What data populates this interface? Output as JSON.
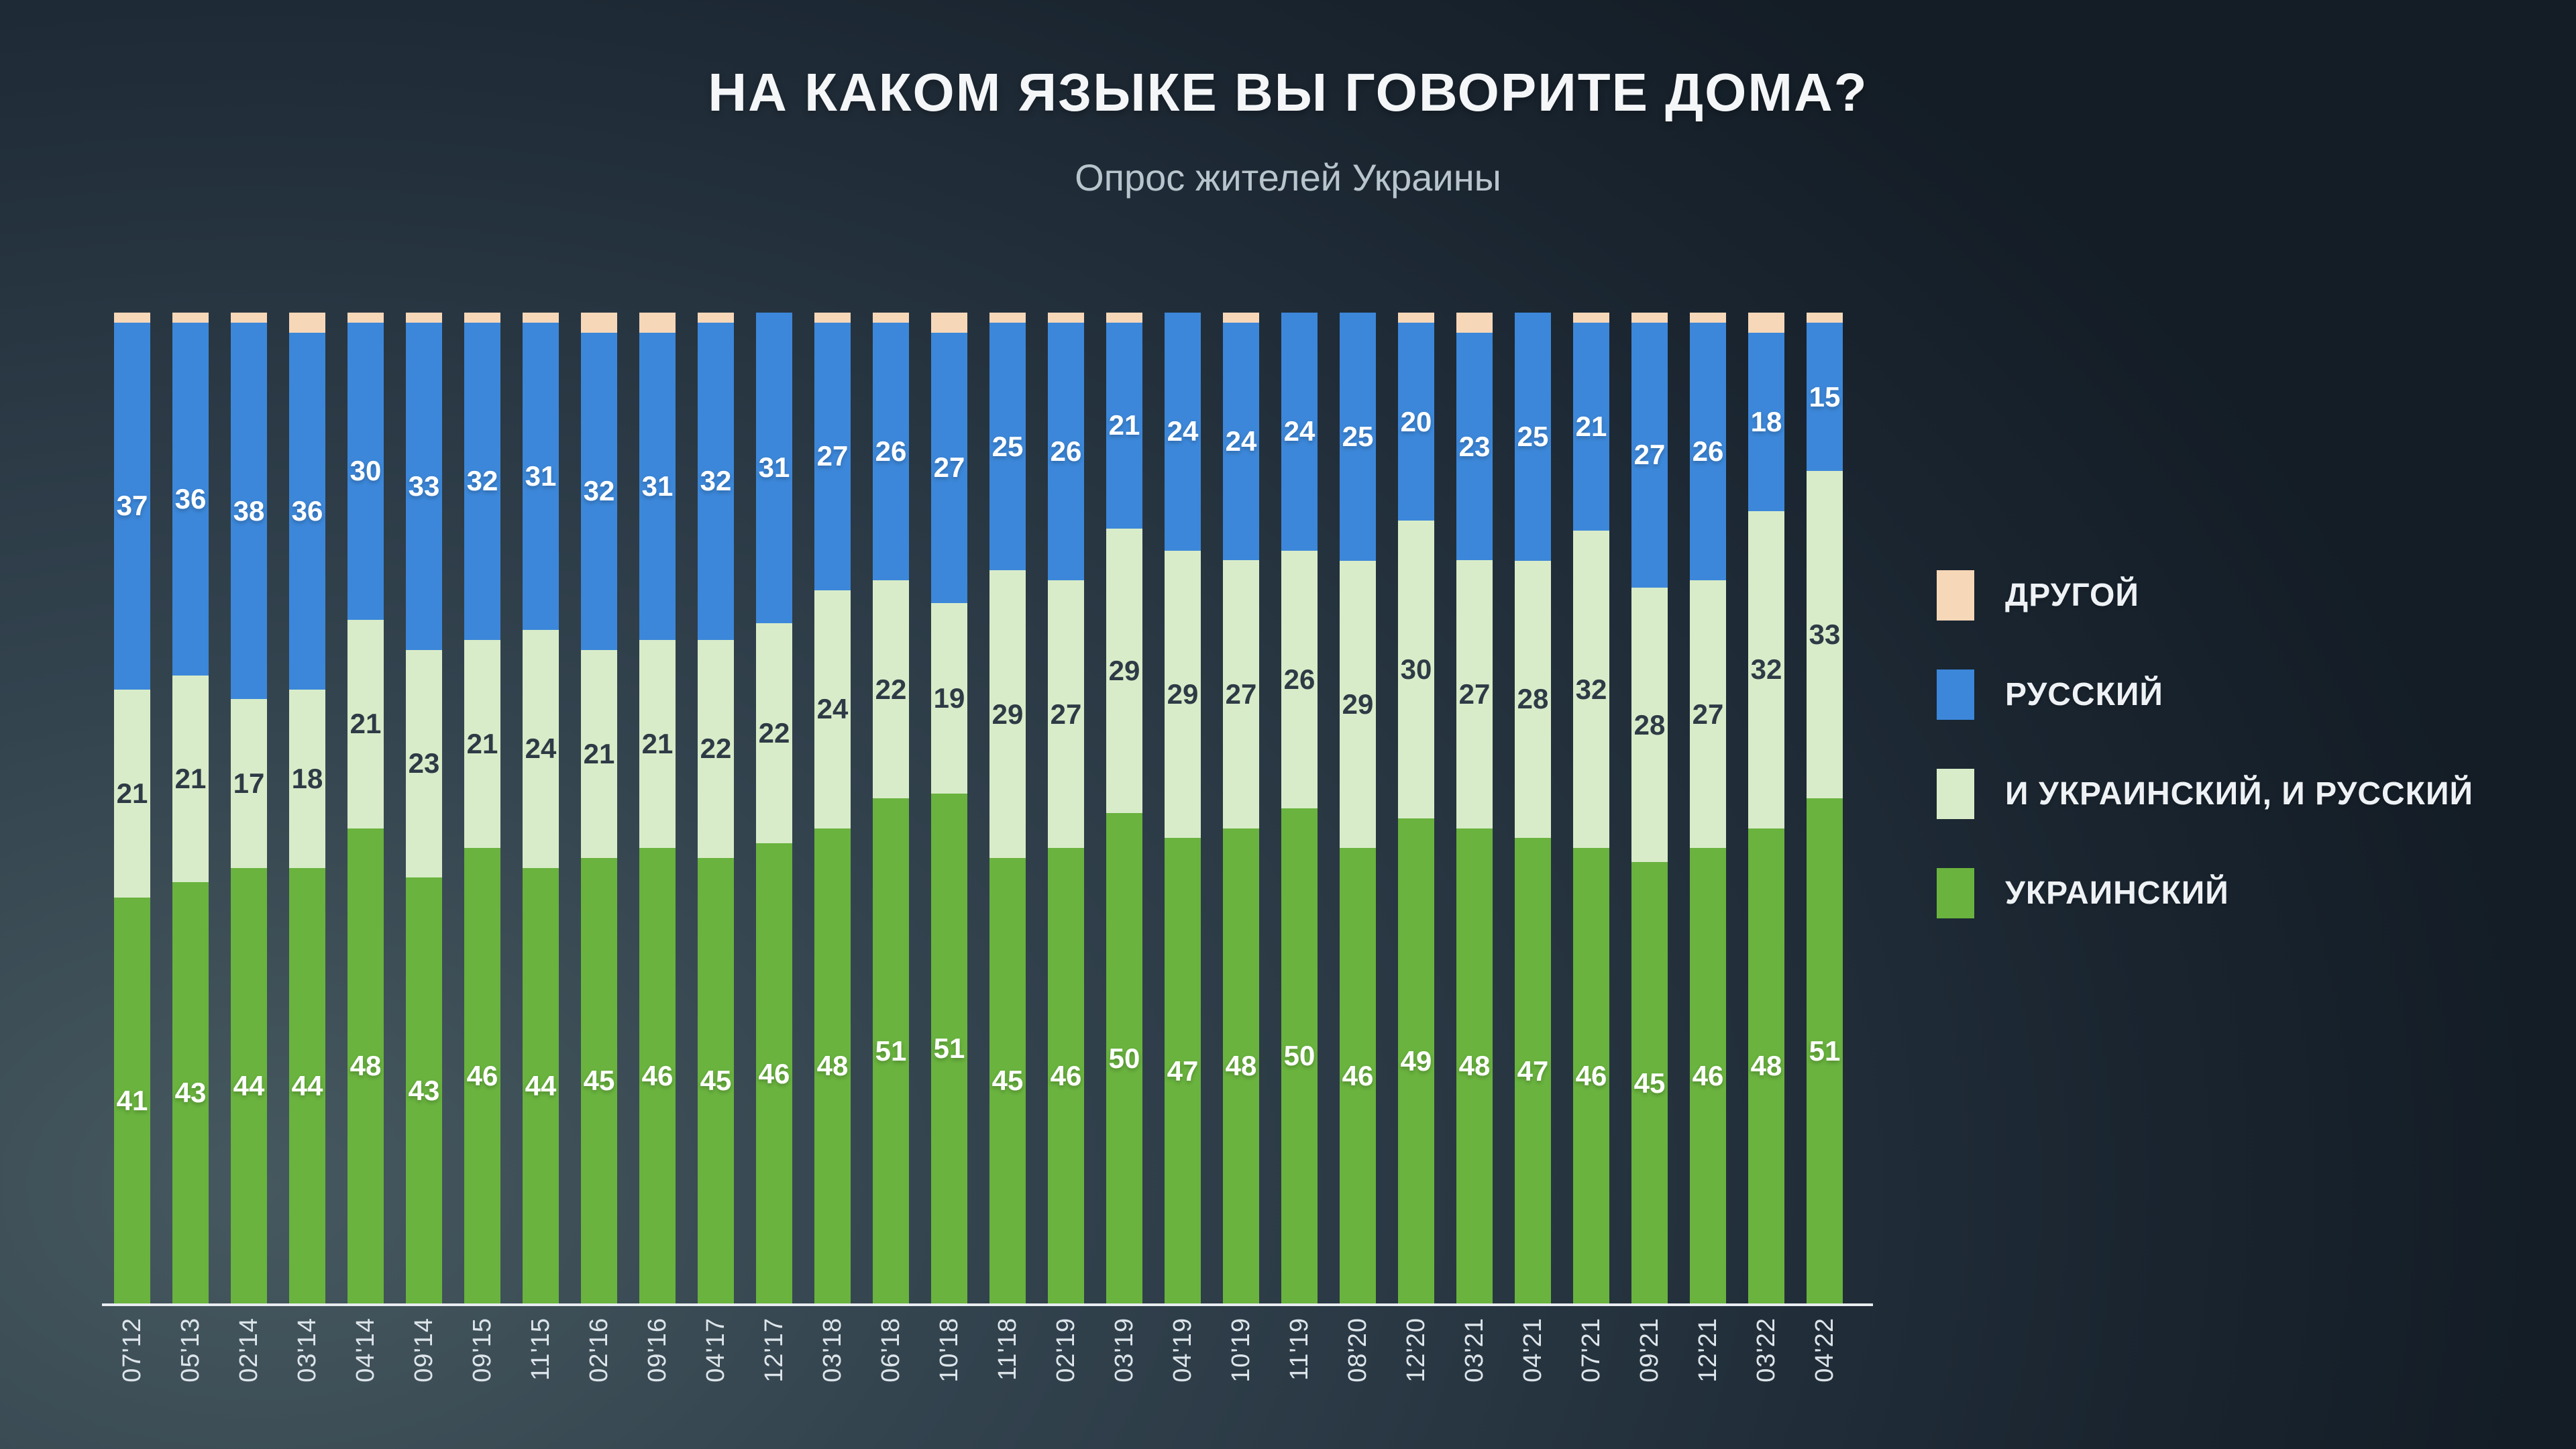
{
  "page": {
    "title": "НА КАКОМ ЯЗЫКЕ ВЫ ГОВОРИТЕ ДОМА?",
    "subtitle": "Опрос жителей Украины"
  },
  "style": {
    "background_light": "#46585f",
    "background_dark": "#141d26",
    "axis_line_color": "#e9edf0",
    "tick_label_color": "#dde5ea",
    "value_label_light": "#ffffff",
    "value_label_dark": "#2e3b46"
  },
  "chart_data": {
    "type": "bar",
    "stacked": true,
    "unit": "percent",
    "title": "НА КАКОМ ЯЗЫКЕ ВЫ ГОВОРИТЕ ДОМА?",
    "subtitle": "Опрос жителей Украины",
    "legend_position": "right",
    "grid": false,
    "ylim": [
      0,
      100
    ],
    "categories": [
      "07'12",
      "05'13",
      "02'14",
      "03'14",
      "04'14",
      "09'14",
      "09'15",
      "11'15",
      "02'16",
      "09'16",
      "04'17",
      "12'17",
      "03'18",
      "06'18",
      "10'18",
      "11'18",
      "02'19",
      "03'19",
      "04'19",
      "10'19",
      "11'19",
      "08'20",
      "12'20",
      "03'21",
      "04'21",
      "07'21",
      "09'21",
      "12'21",
      "03'22",
      "04'22"
    ],
    "series": [
      {
        "key": "ukrainian",
        "name": "УКРАИНСКИЙ",
        "color": "#69b33e",
        "show_labels": true,
        "label_style": "light",
        "values": [
          41,
          43,
          44,
          44,
          48,
          43,
          46,
          44,
          45,
          46,
          45,
          46,
          48,
          51,
          51,
          45,
          46,
          50,
          47,
          48,
          50,
          46,
          49,
          48,
          47,
          46,
          45,
          46,
          48,
          51
        ]
      },
      {
        "key": "both",
        "name": "И УКРАИНСКИЙ, И РУССКИЙ",
        "color": "#d9ecc9",
        "show_labels": true,
        "label_style": "dark",
        "values": [
          21,
          21,
          17,
          18,
          21,
          23,
          21,
          24,
          21,
          21,
          22,
          22,
          24,
          22,
          19,
          29,
          27,
          29,
          29,
          27,
          26,
          29,
          30,
          27,
          28,
          32,
          28,
          27,
          32,
          33
        ]
      },
      {
        "key": "russian",
        "name": "РУССКИЙ",
        "color": "#3c87d9",
        "show_labels": true,
        "label_style": "light",
        "values": [
          37,
          36,
          38,
          36,
          30,
          33,
          32,
          31,
          32,
          31,
          32,
          31,
          27,
          26,
          27,
          25,
          26,
          21,
          24,
          24,
          24,
          25,
          20,
          23,
          25,
          21,
          27,
          26,
          18,
          15
        ]
      },
      {
        "key": "other",
        "name": "ДРУГОЙ",
        "color": "#f6d7b8",
        "show_labels": false,
        "label_style": "dark",
        "values": [
          1,
          1,
          1,
          2,
          1,
          1,
          1,
          1,
          2,
          2,
          1,
          0,
          1,
          1,
          2,
          1,
          1,
          1,
          0,
          1,
          0,
          0,
          1,
          2,
          0,
          1,
          1,
          1,
          2,
          1
        ]
      }
    ]
  }
}
